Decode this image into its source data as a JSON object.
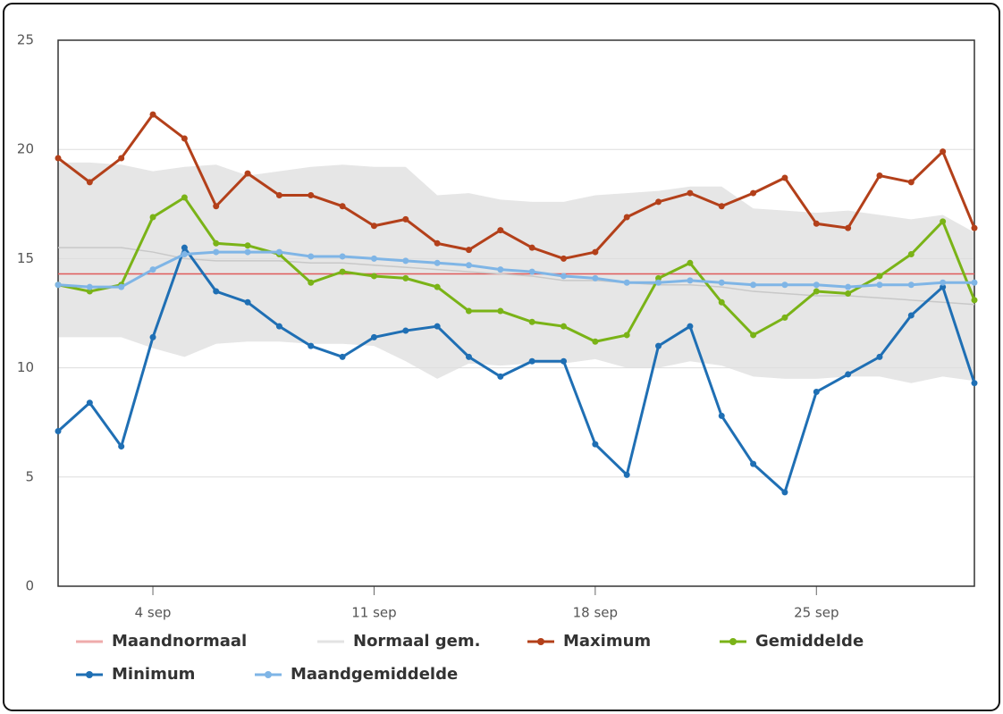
{
  "chart_data": {
    "type": "line",
    "categories": [
      null,
      null,
      null,
      "4 sep",
      null,
      null,
      null,
      null,
      null,
      null,
      "11 sep",
      null,
      null,
      null,
      null,
      null,
      null,
      "18 sep",
      null,
      null,
      null,
      null,
      null,
      null,
      "25 sep",
      null,
      null,
      null,
      null,
      null
    ],
    "ylim": [
      0,
      25
    ],
    "yticks": [
      0,
      5,
      10,
      15,
      20,
      25
    ],
    "grid": true,
    "band": {
      "color": "#e6e6e6",
      "high": [
        19.4,
        19.4,
        19.3,
        19.0,
        19.2,
        19.3,
        18.8,
        19.0,
        19.2,
        19.3,
        19.2,
        19.2,
        17.9,
        18.0,
        17.7,
        17.6,
        17.6,
        17.9,
        18.0,
        18.1,
        18.3,
        18.3,
        17.3,
        17.2,
        17.1,
        17.2,
        17.0,
        16.8,
        17.0,
        16.2
      ],
      "low": [
        11.4,
        11.4,
        11.4,
        10.9,
        10.5,
        11.1,
        11.2,
        11.2,
        11.1,
        11.1,
        11.0,
        10.3,
        9.5,
        10.2,
        10.1,
        10.2,
        10.2,
        10.4,
        10.0,
        10.0,
        10.3,
        10.1,
        9.6,
        9.5,
        9.5,
        9.6,
        9.6,
        9.3,
        9.6,
        9.4
      ]
    },
    "series": [
      {
        "name": "Maandnormaal",
        "color": "#e05a5a",
        "marker": false,
        "values": [
          14.3,
          14.3,
          14.3,
          14.3,
          14.3,
          14.3,
          14.3,
          14.3,
          14.3,
          14.3,
          14.3,
          14.3,
          14.3,
          14.3,
          14.3,
          14.3,
          14.3,
          14.3,
          14.3,
          14.3,
          14.3,
          14.3,
          14.3,
          14.3,
          14.3,
          14.3,
          14.3,
          14.3,
          14.3,
          14.3
        ]
      },
      {
        "name": "Normaal gem.",
        "color": "#c8c8c8",
        "marker": false,
        "values": [
          15.5,
          15.5,
          15.5,
          15.3,
          15.0,
          14.9,
          14.9,
          14.9,
          14.8,
          14.8,
          14.7,
          14.6,
          14.5,
          14.4,
          14.3,
          14.2,
          14.0,
          14.0,
          13.9,
          13.8,
          13.8,
          13.7,
          13.5,
          13.4,
          13.3,
          13.3,
          13.2,
          13.1,
          13.0,
          12.9
        ]
      },
      {
        "name": "Maximum",
        "color": "#b3401a",
        "marker": true,
        "values": [
          19.6,
          18.5,
          19.6,
          21.6,
          20.5,
          17.4,
          18.9,
          17.9,
          17.9,
          17.4,
          16.5,
          16.8,
          15.7,
          15.4,
          16.3,
          15.5,
          15.0,
          15.3,
          16.9,
          17.6,
          18.0,
          17.4,
          18.0,
          18.7,
          16.6,
          16.4,
          18.8,
          18.5,
          19.9,
          16.4
        ]
      },
      {
        "name": "Gemiddelde",
        "color": "#7ab317",
        "marker": true,
        "values": [
          13.8,
          13.5,
          13.8,
          16.9,
          17.8,
          15.7,
          15.6,
          15.2,
          13.9,
          14.4,
          14.2,
          14.1,
          13.7,
          12.6,
          12.6,
          12.1,
          11.9,
          11.2,
          11.5,
          14.1,
          14.8,
          13.0,
          11.5,
          12.3,
          13.5,
          13.4,
          14.2,
          15.2,
          16.7,
          13.1
        ]
      },
      {
        "name": "Minimum",
        "color": "#1f6fb4",
        "marker": true,
        "values": [
          7.1,
          8.4,
          6.4,
          11.4,
          15.5,
          13.5,
          13.0,
          11.9,
          11.0,
          10.5,
          11.4,
          11.7,
          11.9,
          10.5,
          9.6,
          10.3,
          10.3,
          6.5,
          5.1,
          11.0,
          11.9,
          7.8,
          5.6,
          4.3,
          8.9,
          9.7,
          10.5,
          12.4,
          13.7,
          9.3
        ]
      },
      {
        "name": "Maandgemiddelde",
        "color": "#7fb5e6",
        "marker": true,
        "values": [
          13.8,
          13.7,
          13.7,
          14.5,
          15.2,
          15.3,
          15.3,
          15.3,
          15.1,
          15.1,
          15.0,
          14.9,
          14.8,
          14.7,
          14.5,
          14.4,
          14.2,
          14.1,
          13.9,
          13.9,
          14.0,
          13.9,
          13.8,
          13.8,
          13.8,
          13.7,
          13.8,
          13.8,
          13.9,
          13.9
        ]
      }
    ]
  }
}
